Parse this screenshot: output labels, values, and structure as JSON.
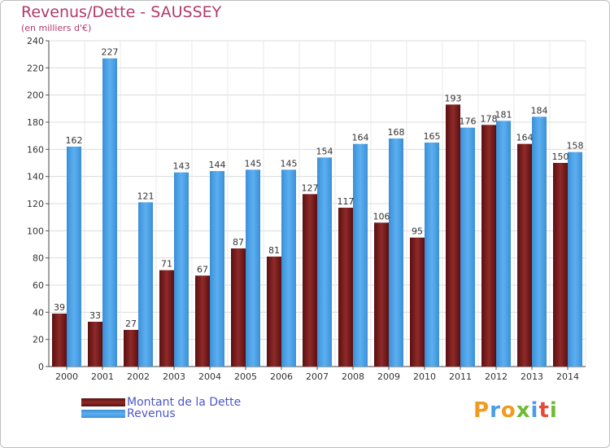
{
  "title": "Revenus/Dette - SAUSSEY",
  "subtitle": "(en milliers d'€)",
  "logo_text": "Proxiti",
  "colors": {
    "title": "#b03a6a",
    "dette": "#7a1e1e",
    "revenus": "#4aa0e6",
    "legend_text": "#4a57c8"
  },
  "legend": [
    {
      "name": "Montant de la Dette",
      "color": "#7a1e1e"
    },
    {
      "name": "Revenus",
      "color": "#4aa0e6"
    }
  ],
  "chart_data": {
    "type": "bar",
    "categories": [
      "2000",
      "2001",
      "2002",
      "2003",
      "2004",
      "2005",
      "2006",
      "2007",
      "2008",
      "2009",
      "2010",
      "2011",
      "2012",
      "2013",
      "2014"
    ],
    "series": [
      {
        "name": "Montant de la Dette",
        "values": [
          39,
          33,
          27,
          71,
          67,
          87,
          81,
          127,
          117,
          106,
          95,
          193,
          178,
          164,
          150
        ]
      },
      {
        "name": "Revenus",
        "values": [
          162,
          227,
          121,
          143,
          144,
          145,
          145,
          154,
          164,
          168,
          165,
          176,
          181,
          184,
          158
        ]
      }
    ],
    "yticks": [
      0,
      20,
      40,
      60,
      80,
      100,
      120,
      140,
      160,
      180,
      200,
      220,
      240
    ],
    "ylim": [
      0,
      240
    ],
    "grid": true,
    "legend_position": "bottom-left"
  }
}
